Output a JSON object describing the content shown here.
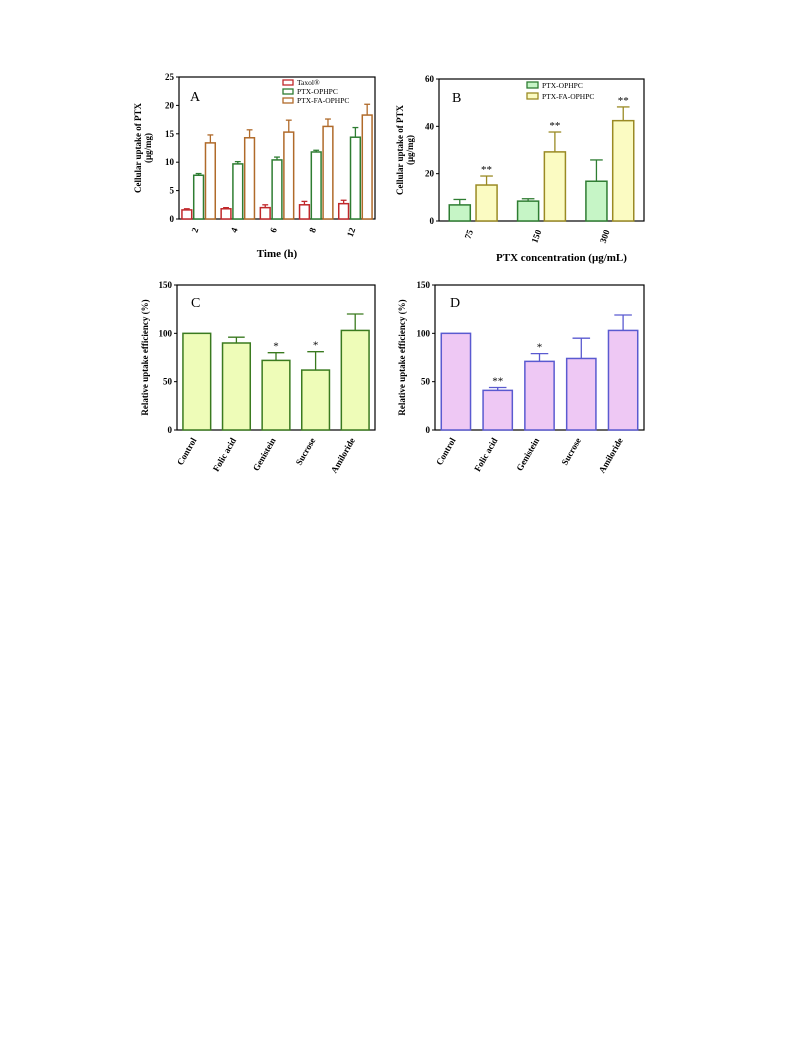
{
  "chart_data": [
    {
      "type": "bar",
      "panel_label": "A",
      "categories": [
        "2",
        "4",
        "6",
        "8",
        "12"
      ],
      "xlabel": "Time (h)",
      "ylabel": [
        "Cellular uptake of PTX",
        "(μg/mg)"
      ],
      "ylim": [
        0,
        25
      ],
      "yticks": [
        0,
        5,
        10,
        15,
        20,
        25
      ],
      "legend_position": "top-right",
      "series": [
        {
          "name": "Taxol®",
          "color": "#c0282b",
          "fill": "#ffffff",
          "values": [
            1.6,
            1.8,
            2.0,
            2.5,
            2.7
          ],
          "errors": [
            0.2,
            0.2,
            0.5,
            0.6,
            0.6
          ]
        },
        {
          "name": "PTX-OPHPC",
          "color": "#2e7d32",
          "fill": "#ffffff",
          "values": [
            7.7,
            9.7,
            10.4,
            11.8,
            14.4
          ],
          "errors": [
            0.3,
            0.4,
            0.5,
            0.3,
            1.7
          ]
        },
        {
          "name": "PTX-FA-OPHPC",
          "color": "#b06a2a",
          "fill": "#ffffff",
          "values": [
            13.4,
            14.3,
            15.3,
            16.3,
            18.3
          ],
          "errors": [
            1.4,
            1.4,
            2.1,
            1.3,
            1.9
          ]
        }
      ],
      "annotations": []
    },
    {
      "type": "bar",
      "panel_label": "B",
      "categories": [
        "75",
        "150",
        "300"
      ],
      "xlabel": "PTX concentration (μg/mL)",
      "ylabel": [
        "Cellular uptake of PTX",
        "(μg/mg)"
      ],
      "ylim": [
        0,
        60
      ],
      "yticks": [
        0,
        20,
        40,
        60
      ],
      "legend_position": "top-right",
      "series": [
        {
          "name": "PTX-OPHPC",
          "color": "#2e7d32",
          "fill": "#c6f5c6",
          "values": [
            6.8,
            8.4,
            16.8
          ],
          "errors": [
            2.3,
            1.0,
            9.0
          ]
        },
        {
          "name": "PTX-FA-OPHPC",
          "color": "#9a8a24",
          "fill": "#fbfbc2",
          "values": [
            15.2,
            29.2,
            42.4
          ],
          "errors": [
            3.8,
            8.4,
            5.8
          ]
        }
      ],
      "annotations": [
        {
          "category": "75",
          "series": 1,
          "text": "**"
        },
        {
          "category": "150",
          "series": 1,
          "text": "**"
        },
        {
          "category": "300",
          "series": 1,
          "text": "**"
        }
      ]
    },
    {
      "type": "bar",
      "panel_label": "C",
      "categories": [
        "Control",
        "Folic acid",
        "Genistein",
        "Sucrose",
        "Amiloride"
      ],
      "xlabel": "",
      "ylabel": [
        "Relative uptake efficiency (%)"
      ],
      "ylim": [
        0,
        150
      ],
      "yticks": [
        0,
        50,
        100,
        150
      ],
      "series": [
        {
          "name": "",
          "color": "#3a7a1f",
          "fill": "#eefcb8",
          "values": [
            100,
            90,
            72,
            62,
            103
          ],
          "errors": [
            0,
            6,
            8,
            19,
            17
          ]
        }
      ],
      "annotations": [
        {
          "category": "Genistein",
          "series": 0,
          "text": "*"
        },
        {
          "category": "Sucrose",
          "series": 0,
          "text": "*"
        }
      ]
    },
    {
      "type": "bar",
      "panel_label": "D",
      "categories": [
        "Control",
        "Folic acid",
        "Genistein",
        "Sucrose",
        "Amiloride"
      ],
      "xlabel": "",
      "ylabel": [
        "Relative uptake efficiency (%)"
      ],
      "ylim": [
        0,
        150
      ],
      "yticks": [
        0,
        50,
        100,
        150
      ],
      "series": [
        {
          "name": "",
          "color": "#5a5ad0",
          "fill": "#eec8f4",
          "values": [
            100,
            41,
            71,
            74,
            103
          ],
          "errors": [
            0,
            3,
            8,
            21,
            16
          ]
        }
      ],
      "annotations": [
        {
          "category": "Folic acid",
          "series": 0,
          "text": "**"
        },
        {
          "category": "Genistein",
          "series": 0,
          "text": "*"
        }
      ]
    }
  ]
}
